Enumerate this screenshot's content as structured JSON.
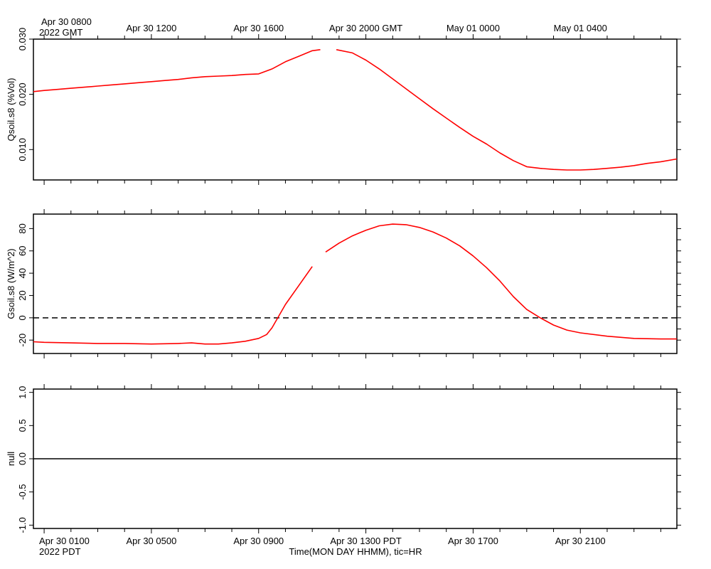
{
  "colors": {
    "series": "#ff0000",
    "axis": "#000000",
    "zero_line": "#000000"
  },
  "top_axis": {
    "first_label": "Apr 30 0800",
    "first_sublabel": "2022 GMT",
    "labels": [
      "Apr 30 1200",
      "Apr 30 1600",
      "Apr 30 2000 GMT",
      "May 01 0000",
      "May 01 0400"
    ]
  },
  "bottom_axis": {
    "first_label": "Apr 30 0100",
    "first_sublabel": "2022 PDT",
    "labels": [
      "Apr 30 0500",
      "Apr 30 0900",
      "Apr 30 1300 PDT",
      "Apr 30 1700",
      "Apr 30 2100"
    ],
    "title": "Time(MON DAY HHMM), tic=HR"
  },
  "chart_data": [
    {
      "type": "line",
      "ylabel": "Qsoil.s8 (%Vol)",
      "x_unit": "hours after Apr 30 0000 PDT",
      "xlim": [
        0.6,
        24.6
      ],
      "ylim": [
        0.0045,
        0.03
      ],
      "yticks": [
        0.01,
        0.02,
        0.03
      ],
      "ytick_labels": [
        "0.010",
        "0.020",
        "0.030"
      ],
      "grid": false,
      "series": [
        {
          "segments": [
            [
              [
                0.6,
                0.0205
              ],
              [
                1.0,
                0.0207
              ],
              [
                1.5,
                0.0209
              ],
              [
                2.0,
                0.0211
              ],
              [
                2.5,
                0.0213
              ],
              [
                3.0,
                0.0215
              ],
              [
                3.5,
                0.0217
              ],
              [
                4.0,
                0.0219
              ],
              [
                4.5,
                0.0221
              ],
              [
                5.0,
                0.0223
              ],
              [
                5.5,
                0.0225
              ],
              [
                6.0,
                0.0227
              ],
              [
                6.5,
                0.023
              ],
              [
                7.0,
                0.0232
              ],
              [
                7.5,
                0.0233
              ],
              [
                8.0,
                0.0234
              ],
              [
                8.5,
                0.0236
              ],
              [
                9.0,
                0.0237
              ],
              [
                9.5,
                0.0246
              ],
              [
                10.0,
                0.0259
              ],
              [
                10.5,
                0.0269
              ],
              [
                11.0,
                0.0279
              ],
              [
                11.3,
                0.0281
              ]
            ],
            [
              [
                11.9,
                0.0281
              ],
              [
                12.5,
                0.0275
              ],
              [
                13.0,
                0.0262
              ],
              [
                13.5,
                0.0246
              ],
              [
                14.0,
                0.0228
              ],
              [
                14.5,
                0.021
              ],
              [
                15.0,
                0.0192
              ],
              [
                15.5,
                0.0174
              ],
              [
                16.0,
                0.0157
              ],
              [
                16.5,
                0.014
              ],
              [
                17.0,
                0.0124
              ],
              [
                17.5,
                0.011
              ],
              [
                18.0,
                0.0094
              ],
              [
                18.5,
                0.008
              ],
              [
                19.0,
                0.0069
              ],
              [
                19.5,
                0.0066
              ],
              [
                20.0,
                0.0064
              ],
              [
                20.5,
                0.0063
              ],
              [
                21.0,
                0.0063
              ],
              [
                21.5,
                0.0064
              ],
              [
                22.0,
                0.0066
              ],
              [
                22.5,
                0.0068
              ],
              [
                23.0,
                0.0071
              ],
              [
                23.5,
                0.0075
              ],
              [
                24.0,
                0.0078
              ],
              [
                24.6,
                0.0083
              ]
            ]
          ]
        }
      ]
    },
    {
      "type": "line",
      "ylabel": "Gsoil.s8 (W/m^2)",
      "x_unit": "hours after Apr 30 0000 PDT",
      "xlim": [
        0.6,
        24.6
      ],
      "ylim": [
        -32,
        93
      ],
      "yticks": [
        -20,
        0,
        20,
        40,
        60,
        80
      ],
      "ytick_labels": [
        "-20",
        "0",
        "20",
        "40",
        "60",
        "80"
      ],
      "zero_line": {
        "y": 0,
        "style": "dashed"
      },
      "grid": false,
      "series": [
        {
          "segments": [
            [
              [
                0.6,
                -21.5
              ],
              [
                1.0,
                -22.0
              ],
              [
                2.0,
                -22.5
              ],
              [
                3.0,
                -23.0
              ],
              [
                4.0,
                -23.0
              ],
              [
                5.0,
                -23.5
              ],
              [
                6.0,
                -23.0
              ],
              [
                6.5,
                -22.5
              ],
              [
                7.0,
                -23.5
              ],
              [
                7.5,
                -23.5
              ],
              [
                8.0,
                -22.5
              ],
              [
                8.5,
                -21.0
              ],
              [
                9.0,
                -18.5
              ],
              [
                9.3,
                -15.0
              ],
              [
                9.5,
                -9.0
              ],
              [
                10.0,
                12.0
              ],
              [
                10.5,
                29.0
              ],
              [
                11.0,
                46.0
              ]
            ],
            [
              [
                11.5,
                59.0
              ],
              [
                12.0,
                67.0
              ],
              [
                12.5,
                73.5
              ],
              [
                13.0,
                78.5
              ],
              [
                13.5,
                82.5
              ],
              [
                14.0,
                84.0
              ],
              [
                14.5,
                83.5
              ],
              [
                15.0,
                81.0
              ],
              [
                15.5,
                77.0
              ],
              [
                16.0,
                71.5
              ],
              [
                16.5,
                64.5
              ],
              [
                17.0,
                55.5
              ],
              [
                17.5,
                45.0
              ],
              [
                18.0,
                33.0
              ],
              [
                18.5,
                19.0
              ],
              [
                19.0,
                7.5
              ],
              [
                19.5,
                0.0
              ],
              [
                20.0,
                -6.5
              ],
              [
                20.5,
                -11.0
              ],
              [
                21.0,
                -13.5
              ],
              [
                22.0,
                -16.5
              ],
              [
                23.0,
                -18.5
              ],
              [
                24.0,
                -19.0
              ],
              [
                24.6,
                -19.0
              ]
            ]
          ]
        }
      ]
    },
    {
      "type": "line",
      "ylabel": "null",
      "xlim": [
        0.6,
        24.6
      ],
      "ylim": [
        -1.05,
        1.05
      ],
      "yticks": [
        -1.0,
        -0.5,
        0.0,
        0.5,
        1.0
      ],
      "ytick_labels": [
        "-1.0",
        "-0.5",
        "0.0",
        "0.5",
        "1.0"
      ],
      "zero_line": {
        "y": 0,
        "style": "solid"
      },
      "grid": false,
      "series": []
    }
  ]
}
